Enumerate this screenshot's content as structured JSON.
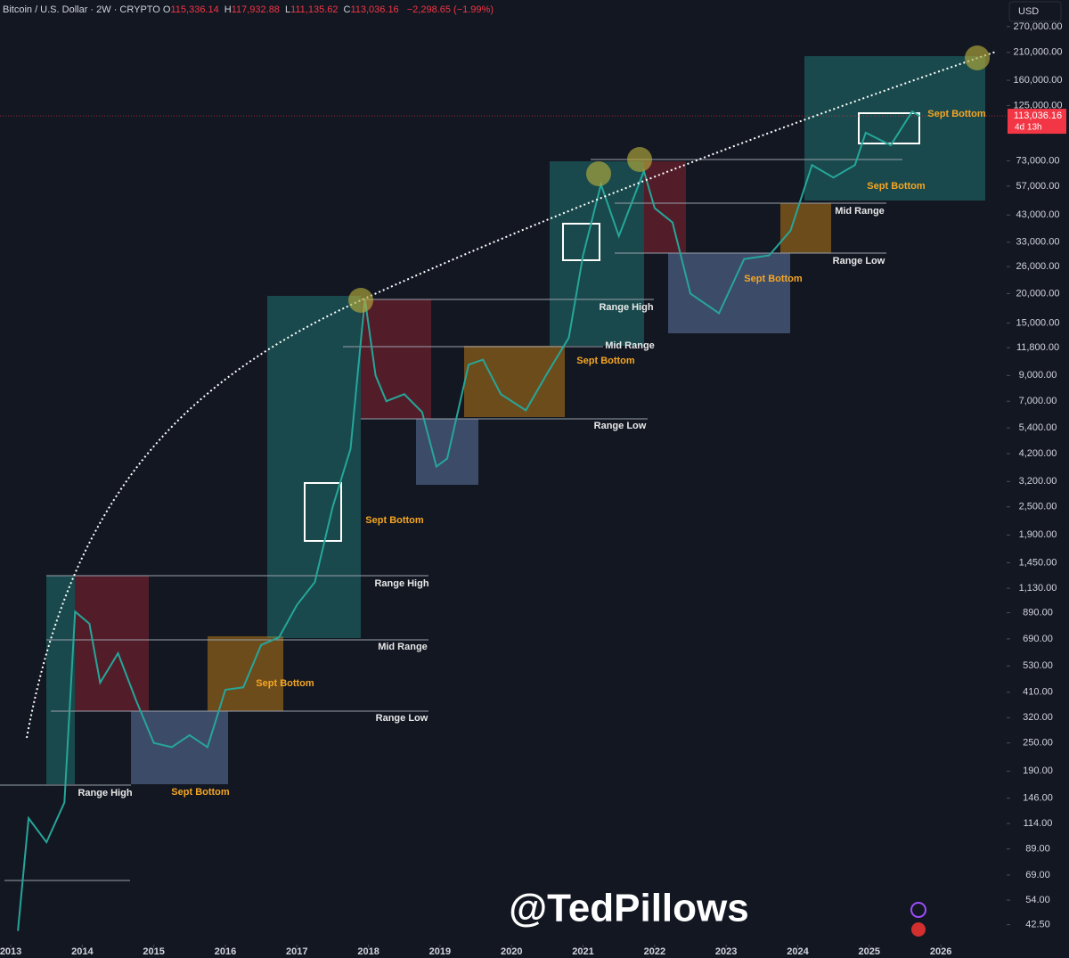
{
  "chart_data": {
    "type": "line",
    "title": "Bitcoin / U.S. Dollar · 2W · CRYPTO",
    "ohlc": [
      {
        "label": "O",
        "value": "115,336.14"
      },
      {
        "label": "H",
        "value": "117,932.88"
      },
      {
        "label": "L",
        "value": "111,135.62"
      },
      {
        "label": "C",
        "value": "113,036.16"
      }
    ],
    "change": "−2,298.65 (−1.99%)",
    "currency": "USD",
    "last_price": {
      "value": 113036.16,
      "label": "113,036.16"
    },
    "countdown": "4d 13h",
    "watermark": "@TedPillows",
    "log_scale": true,
    "grid": false,
    "color": "#26a69a",
    "x": [
      2013.1,
      2013.25,
      2013.5,
      2013.75,
      2013.9,
      2014.1,
      2014.25,
      2014.5,
      2014.75,
      2015.0,
      2015.25,
      2015.5,
      2015.75,
      2016.0,
      2016.25,
      2016.5,
      2016.75,
      2017.0,
      2017.25,
      2017.5,
      2017.75,
      2017.95,
      2018.1,
      2018.25,
      2018.5,
      2018.75,
      2018.95,
      2019.1,
      2019.4,
      2019.6,
      2019.85,
      2020.2,
      2020.5,
      2020.8,
      2021.0,
      2021.25,
      2021.5,
      2021.85,
      2022.0,
      2022.25,
      2022.5,
      2022.9,
      2023.25,
      2023.6,
      2023.9,
      2024.2,
      2024.5,
      2024.8,
      2024.95,
      2025.3,
      2025.6,
      2025.7
    ],
    "values": [
      40,
      120,
      95,
      140,
      900,
      800,
      450,
      600,
      380,
      250,
      240,
      270,
      240,
      420,
      430,
      650,
      700,
      960,
      1200,
      2500,
      4400,
      19000,
      9000,
      7000,
      7500,
      6300,
      3700,
      4000,
      10000,
      10500,
      7500,
      6400,
      9200,
      13000,
      29000,
      58000,
      35000,
      66000,
      46000,
      40000,
      20000,
      16500,
      28000,
      29000,
      37000,
      70000,
      62000,
      70000,
      96000,
      85000,
      118000,
      113036.16
    ],
    "xlim": [
      2012.85,
      2026.92
    ],
    "xticks": [
      2013,
      2014,
      2015,
      2016,
      2017,
      2018,
      2019,
      2020,
      2021,
      2022,
      2023,
      2024,
      2025,
      2026
    ],
    "ylim": [
      35,
      350000
    ],
    "yticks": [
      {
        "value": 42.5,
        "label": "42.50"
      },
      {
        "value": 54,
        "label": "54.00"
      },
      {
        "value": 69,
        "label": "69.00"
      },
      {
        "value": 89,
        "label": "89.00"
      },
      {
        "value": 114,
        "label": "114.00"
      },
      {
        "value": 146,
        "label": "146.00"
      },
      {
        "value": 190,
        "label": "190.00"
      },
      {
        "value": 250,
        "label": "250.00"
      },
      {
        "value": 320,
        "label": "320.00"
      },
      {
        "value": 410,
        "label": "410.00"
      },
      {
        "value": 530,
        "label": "530.00"
      },
      {
        "value": 690,
        "label": "690.00"
      },
      {
        "value": 890,
        "label": "890.00"
      },
      {
        "value": 1130,
        "label": "1,130.00"
      },
      {
        "value": 1450,
        "label": "1,450.00"
      },
      {
        "value": 1900,
        "label": "1,900.00"
      },
      {
        "value": 2500,
        "label": "2,500.00"
      },
      {
        "value": 3200,
        "label": "3,200.00"
      },
      {
        "value": 4200,
        "label": "4,200.00"
      },
      {
        "value": 5400,
        "label": "5,400.00"
      },
      {
        "value": 7000,
        "label": "7,000.00"
      },
      {
        "value": 9000,
        "label": "9,000.00"
      },
      {
        "value": 11800,
        "label": "11,800.00"
      },
      {
        "value": 15000,
        "label": "15,000.00"
      },
      {
        "value": 20000,
        "label": "20,000.00"
      },
      {
        "value": 26000,
        "label": "26,000.00"
      },
      {
        "value": 33000,
        "label": "33,000.00"
      },
      {
        "value": 43000,
        "label": "43,000.00"
      },
      {
        "value": 57000,
        "label": "57,000.00"
      },
      {
        "value": 73000,
        "label": "73,000.00"
      },
      {
        "value": 125000,
        "label": "125,000.00"
      },
      {
        "value": 160000,
        "label": "160,000.00"
      },
      {
        "value": 210000,
        "label": "210,000.00"
      },
      {
        "value": 270000,
        "label": "270,000.00"
      }
    ],
    "annotations": [
      "Range High",
      "Sept Bottom",
      "Sept Bottom",
      "Range High",
      "Mid Range",
      "Range Low",
      "Sept Bottom",
      "Range High",
      "Mid Range",
      "Sept Bottom",
      "Range Low",
      "Sept Bottom",
      "Range Low",
      "Mid Range",
      "Sept Bottom",
      "Sept Bottom"
    ]
  }
}
